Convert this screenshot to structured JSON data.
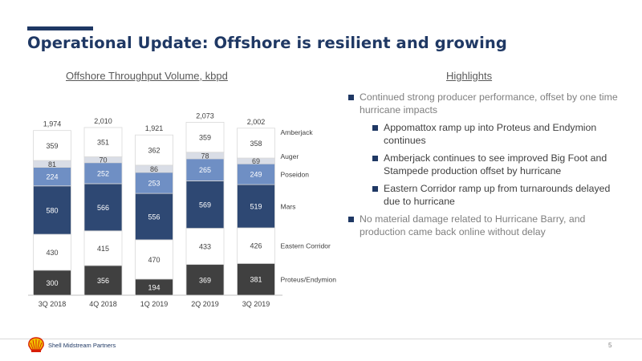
{
  "page": {
    "title": "Operational Update: Offshore is resilient and growing",
    "chart_heading": "Offshore Throughput Volume, kbpd",
    "highlights_heading": "Highlights",
    "company": "Shell Midstream Partners",
    "page_number": "5",
    "logo": "shell-logo-icon",
    "accent_color": "#1f3864"
  },
  "highlights": [
    {
      "level": 1,
      "text": "Continued strong producer performance, offset by one time hurricane impacts"
    },
    {
      "level": 2,
      "text": "Appomattox ramp up into Proteus and Endymion continues"
    },
    {
      "level": 2,
      "text": "Amberjack continues to see improved Big Foot and Stampede production offset by hurricane"
    },
    {
      "level": 2,
      "text": "Eastern Corridor ramp up from turnarounds delayed due to hurricane"
    },
    {
      "level": 1,
      "text": "No material damage related to Hurricane Barry, and production came back online without delay"
    }
  ],
  "chart_data": {
    "type": "bar",
    "stacked": true,
    "title": "Offshore Throughput Volume, kbpd",
    "categories": [
      "3Q 2018",
      "4Q 2018",
      "1Q 2019",
      "2Q 2019",
      "3Q 2019"
    ],
    "totals": [
      "1,974",
      "2,010",
      "1,921",
      "2,073",
      "2,002"
    ],
    "series": [
      {
        "name": "Proteus/Endymion",
        "values": [
          300,
          356,
          194,
          369,
          381
        ],
        "color": "#404040",
        "text_color": "#ffffff"
      },
      {
        "name": "Eastern Corridor",
        "values": [
          430,
          415,
          470,
          433,
          426
        ],
        "color": "#ffffff",
        "text_color": "#404040"
      },
      {
        "name": "Mars",
        "values": [
          580,
          566,
          556,
          569,
          519
        ],
        "color": "#2e4873",
        "text_color": "#ffffff"
      },
      {
        "name": "Poseidon",
        "values": [
          224,
          252,
          253,
          265,
          249
        ],
        "color": "#6f8fc4",
        "text_color": "#ffffff"
      },
      {
        "name": "Auger",
        "values": [
          81,
          70,
          86,
          78,
          69
        ],
        "color": "#d9dde6",
        "text_color": "#404040"
      },
      {
        "name": "Amberjack",
        "values": [
          359,
          351,
          362,
          359,
          358
        ],
        "color": "#ffffff",
        "text_color": "#404040"
      }
    ],
    "legend": "right"
  }
}
